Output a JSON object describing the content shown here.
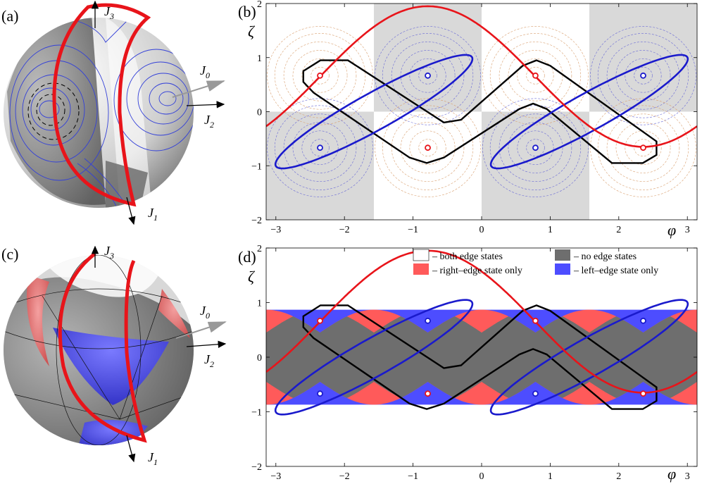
{
  "figure": {
    "panel_a": {
      "label": "(a)",
      "axes": {
        "j3": "J",
        "j3_sub": "3",
        "j0": "J",
        "j0_sub": "0",
        "j2": "J",
        "j2_sub": "2",
        "j1": "J",
        "j1_sub": "1"
      }
    },
    "panel_c": {
      "label": "(c)",
      "axes": {
        "j3": "J",
        "j3_sub": "3",
        "j0": "J",
        "j0_sub": "0",
        "j2": "J",
        "j2_sub": "2",
        "j1": "J",
        "j1_sub": "1"
      }
    },
    "panel_b": {
      "label": "(b)"
    },
    "panel_d": {
      "label": "(d)"
    },
    "legend": {
      "both": "– both edge states",
      "none": "– no edge states",
      "right": "– right–edge state only",
      "left": "– left–edge state only"
    },
    "colors": {
      "red": "#e8141a",
      "blue": "#1a1acc",
      "black": "#000000",
      "gray_region": "#6e6e6e",
      "red_region": "#ff5a5a",
      "blue_region": "#4d4dff",
      "shade": "#d9d9d9"
    }
  },
  "chart_data": [
    {
      "type": "line",
      "panel": "(b)",
      "xlabel": "φ",
      "ylabel": "ζ",
      "xlim": [
        -3.1416,
        3.1416
      ],
      "ylim": [
        -2,
        2
      ],
      "xticks": [
        "−3",
        "−2",
        "−1",
        "0",
        "1",
        "2",
        "3"
      ],
      "yticks": [
        "−2",
        "−1",
        "0",
        "1",
        "2"
      ],
      "series": [
        {
          "name": "red curve",
          "formula": "zeta = 1.3*cos(phi+0.785) + 0.65"
        },
        {
          "name": "blue closed curves",
          "note": "two ellipses through (−0.79,0.67),(−2.36,−0.67) and (2.36,0.67),(0.79,−0.67)"
        },
        {
          "name": "black closed curve",
          "note": "zigzag band between ζ≈0.95 and ζ≈−0.95"
        }
      ],
      "fixed_points_red": [
        [
          -2.356,
          0.667
        ],
        [
          0.785,
          0.667
        ],
        [
          -0.785,
          -0.667
        ],
        [
          2.356,
          -0.667
        ]
      ],
      "fixed_points_blue": [
        [
          -0.785,
          0.667
        ],
        [
          2.356,
          0.667
        ],
        [
          -2.356,
          -0.667
        ],
        [
          0.785,
          -0.667
        ]
      ]
    },
    {
      "type": "area",
      "panel": "(d)",
      "xlabel": "φ",
      "ylabel": "ζ",
      "xlim": [
        -3.1416,
        3.1416
      ],
      "ylim": [
        -2,
        2
      ],
      "xticks": [
        "−3",
        "−2",
        "−1",
        "0",
        "1",
        "2",
        "3"
      ],
      "yticks": [
        "−2",
        "−1",
        "0",
        "1",
        "2"
      ],
      "band": {
        "amplitude_max": 0.87,
        "amplitude_min": 0.45
      }
    }
  ]
}
